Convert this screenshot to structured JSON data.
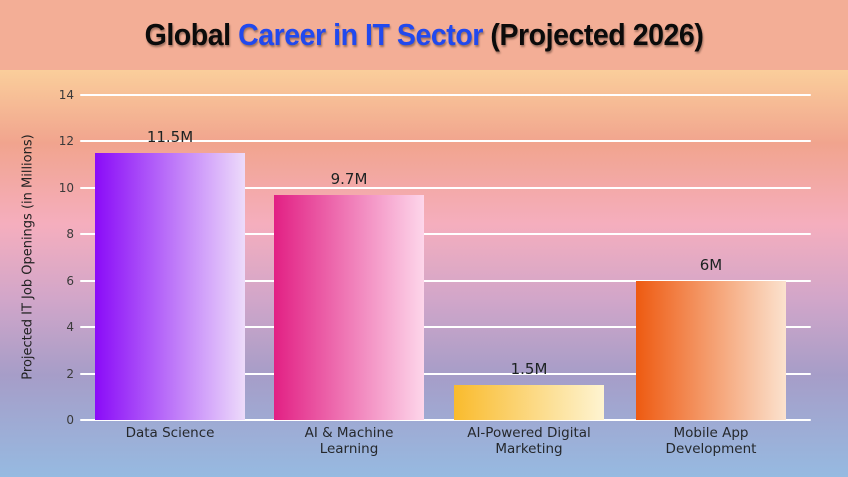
{
  "header": {
    "background": "#f3ae96",
    "title_parts": [
      {
        "text": "Global ",
        "color": "#0b0b0b"
      },
      {
        "text": "Career in IT Sector",
        "color": "#2149ee"
      },
      {
        "text": " (Projected 2026)",
        "color": "#0b0b0b"
      }
    ]
  },
  "chart_data": {
    "type": "bar",
    "title": "Global Career in IT Sector (Projected 2026)",
    "categories": [
      "Data Science",
      "AI & Machine Learning",
      "AI-Powered Digital Marketing",
      "Mobile App Development"
    ],
    "category_lines": [
      [
        "Data Science"
      ],
      [
        "AI & Machine",
        "Learning"
      ],
      [
        "AI-Powered Digital",
        "Marketing"
      ],
      [
        "Mobile App",
        "Development"
      ]
    ],
    "values": [
      11.5,
      9.7,
      1.5,
      6
    ],
    "value_labels": [
      "11.5M",
      "9.7M",
      "1.5M",
      "6M"
    ],
    "xlabel": "",
    "ylabel": "Projected IT Job Openings (in Millions)",
    "ylim": [
      0,
      14
    ],
    "yticks": [
      0,
      2,
      4,
      6,
      8,
      10,
      12,
      14
    ],
    "grid": true,
    "gridline_color": "#ffffff",
    "legend_position": "none",
    "bar_gradients": [
      [
        "#8a0bf8",
        "#eddbfa"
      ],
      [
        "#e22084",
        "#fdd6ea"
      ],
      [
        "#f9bb2d",
        "#fef4d1"
      ],
      [
        "#ee5a11",
        "#fbe2ce"
      ]
    ],
    "background_gradient": {
      "direction": "to bottom",
      "stops": [
        {
          "color": "#face9b",
          "pos": "0%"
        },
        {
          "color": "#f1a48e",
          "pos": "18%"
        },
        {
          "color": "#f5aebe",
          "pos": "38%"
        },
        {
          "color": "#d2a6c9",
          "pos": "56%"
        },
        {
          "color": "#a69dc8",
          "pos": "75%"
        },
        {
          "color": "#96bae1",
          "pos": "100%"
        }
      ]
    }
  }
}
